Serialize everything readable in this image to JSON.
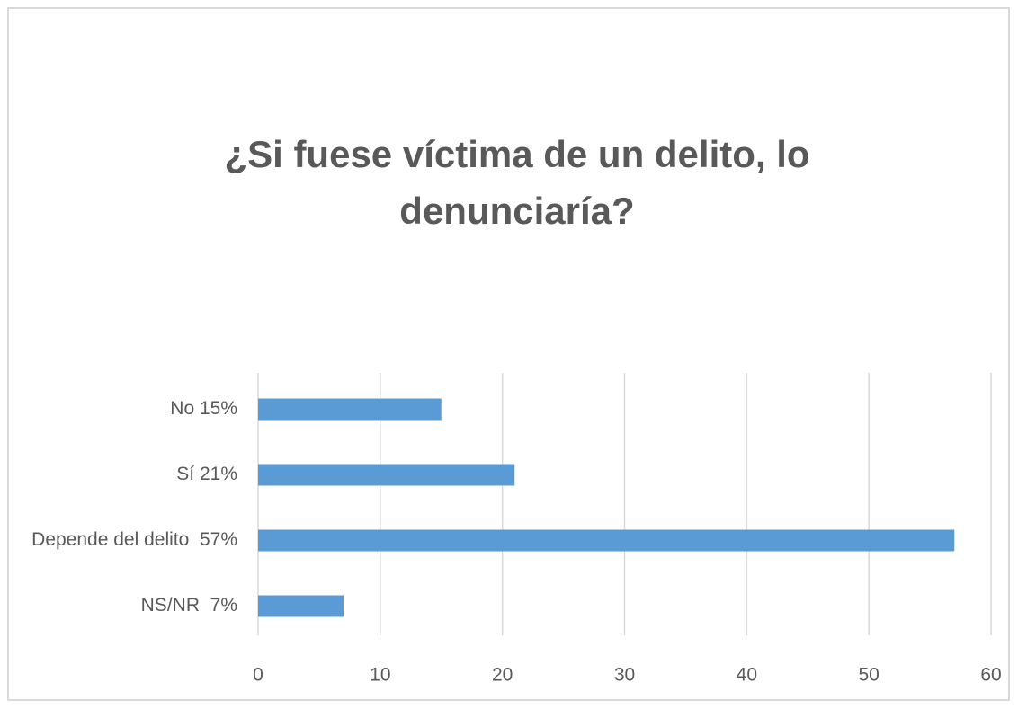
{
  "chart_data": {
    "type": "bar",
    "orientation": "horizontal",
    "title": "¿Si fuese víctima de un delito, lo denunciaría?",
    "categories": [
      "No 15%",
      "Sí 21%",
      "Depende del delito  57%",
      "NS/NR  7%"
    ],
    "values": [
      15,
      21,
      57,
      7
    ],
    "color": "#5b9bd5",
    "xlim": [
      0,
      60
    ],
    "xticks": [
      0,
      10,
      20,
      30,
      40,
      50,
      60
    ],
    "grid": true
  }
}
